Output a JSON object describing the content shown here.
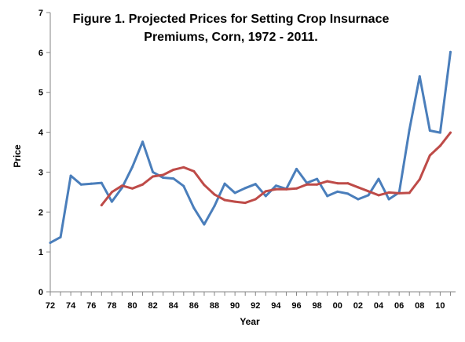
{
  "chart_data": {
    "type": "line",
    "title_lines": [
      "Figure 1. Projected Prices for Setting Crop Insurnace",
      "Premiums, Corn, 1972 - 2011."
    ],
    "xlabel": "Year",
    "ylabel": "Price",
    "xlim": [
      1972,
      2011
    ],
    "ylim": [
      0,
      7
    ],
    "y_ticks": [
      0,
      1,
      2,
      3,
      4,
      5,
      6,
      7
    ],
    "x_tick_labels": [
      {
        "year": 1972,
        "label": "72"
      },
      {
        "year": 1974,
        "label": "74"
      },
      {
        "year": 1976,
        "label": "76"
      },
      {
        "year": 1978,
        "label": "78"
      },
      {
        "year": 1980,
        "label": "80"
      },
      {
        "year": 1982,
        "label": "82"
      },
      {
        "year": 1984,
        "label": "84"
      },
      {
        "year": 1986,
        "label": "86"
      },
      {
        "year": 1988,
        "label": "88"
      },
      {
        "year": 1990,
        "label": "90"
      },
      {
        "year": 1992,
        "label": "92"
      },
      {
        "year": 1994,
        "label": "94"
      },
      {
        "year": 1996,
        "label": "96"
      },
      {
        "year": 1998,
        "label": "98"
      },
      {
        "year": 2000,
        "label": "00"
      },
      {
        "year": 2002,
        "label": "02"
      },
      {
        "year": 2004,
        "label": "04"
      },
      {
        "year": 2006,
        "label": "06"
      },
      {
        "year": 2008,
        "label": "08"
      },
      {
        "year": 2010,
        "label": "10"
      }
    ],
    "grid": false,
    "legend": "none",
    "series": [
      {
        "color": "#4a7ebb",
        "x": [
          1972,
          1973,
          1974,
          1975,
          1976,
          1977,
          1978,
          1979,
          1980,
          1981,
          1982,
          1983,
          1984,
          1985,
          1986,
          1987,
          1988,
          1989,
          1990,
          1991,
          1992,
          1993,
          1994,
          1995,
          1996,
          1997,
          1998,
          1999,
          2000,
          2001,
          2002,
          2003,
          2004,
          2005,
          2006,
          2007,
          2008,
          2009,
          2010,
          2011
        ],
        "y": [
          1.23,
          1.37,
          2.91,
          2.69,
          2.71,
          2.73,
          2.26,
          2.61,
          3.13,
          3.76,
          3.0,
          2.86,
          2.84,
          2.65,
          2.1,
          1.69,
          2.15,
          2.71,
          2.48,
          2.6,
          2.7,
          2.4,
          2.66,
          2.58,
          3.08,
          2.73,
          2.83,
          2.4,
          2.51,
          2.46,
          2.32,
          2.42,
          2.83,
          2.32,
          2.49,
          4.06,
          5.4,
          4.04,
          3.99,
          6.01
        ]
      },
      {
        "color": "#be4b48",
        "x": [
          1977,
          1978,
          1979,
          1980,
          1981,
          1982,
          1983,
          1984,
          1985,
          1986,
          1987,
          1988,
          1989,
          1990,
          1991,
          1992,
          1993,
          1994,
          1995,
          1996,
          1997,
          1998,
          1999,
          2000,
          2001,
          2002,
          2003,
          2004,
          2005,
          2006,
          2007,
          2008,
          2009,
          2010,
          2011
        ],
        "y": [
          2.17,
          2.5,
          2.66,
          2.59,
          2.69,
          2.89,
          2.93,
          3.06,
          3.12,
          3.02,
          2.68,
          2.44,
          2.3,
          2.26,
          2.23,
          2.32,
          2.52,
          2.57,
          2.57,
          2.59,
          2.69,
          2.69,
          2.77,
          2.72,
          2.72,
          2.62,
          2.52,
          2.42,
          2.49,
          2.47,
          2.48,
          2.82,
          3.42,
          3.66,
          3.99
        ]
      }
    ]
  }
}
